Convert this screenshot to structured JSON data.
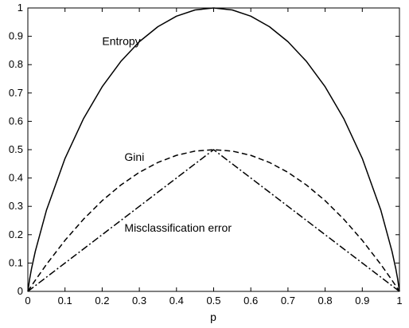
{
  "chart_data": {
    "type": "line",
    "title": "",
    "xlabel": "p",
    "ylabel": "",
    "xlim": [
      0,
      1
    ],
    "ylim": [
      0,
      1
    ],
    "xticks": [
      "0",
      "0.1",
      "0.2",
      "0.3",
      "0.4",
      "0.5",
      "0.6",
      "0.7",
      "0.8",
      "0.9",
      "1"
    ],
    "yticks": [
      "0",
      "0.1",
      "0.2",
      "0.3",
      "0.4",
      "0.5",
      "0.6",
      "0.7",
      "0.8",
      "0.9",
      "1"
    ],
    "grid": false,
    "x": [
      0,
      0.005,
      0.01,
      0.02,
      0.05,
      0.1,
      0.15,
      0.2,
      0.25,
      0.3,
      0.35,
      0.4,
      0.45,
      0.5,
      0.55,
      0.6,
      0.65,
      0.7,
      0.75,
      0.8,
      0.85,
      0.9,
      0.95,
      0.98,
      0.99,
      0.995,
      1
    ],
    "series": [
      {
        "name": "Entropy",
        "line_style": "solid",
        "values": [
          0,
          0.045,
          0.081,
          0.141,
          0.286,
          0.469,
          0.61,
          0.722,
          0.811,
          0.881,
          0.934,
          0.971,
          0.993,
          1,
          0.993,
          0.971,
          0.934,
          0.881,
          0.811,
          0.722,
          0.61,
          0.469,
          0.286,
          0.141,
          0.081,
          0.045,
          0
        ]
      },
      {
        "name": "Gini",
        "line_style": "dashed",
        "values": [
          0,
          0.00995,
          0.0198,
          0.0392,
          0.095,
          0.18,
          0.255,
          0.32,
          0.375,
          0.42,
          0.455,
          0.48,
          0.495,
          0.5,
          0.495,
          0.48,
          0.455,
          0.42,
          0.375,
          0.32,
          0.255,
          0.18,
          0.095,
          0.0392,
          0.0198,
          0.00995,
          0
        ]
      },
      {
        "name": "Misclassification error",
        "line_style": "dashdot",
        "values": [
          0,
          0.005,
          0.01,
          0.02,
          0.05,
          0.1,
          0.15,
          0.2,
          0.25,
          0.3,
          0.35,
          0.4,
          0.45,
          0.5,
          0.45,
          0.4,
          0.35,
          0.3,
          0.25,
          0.2,
          0.15,
          0.1,
          0.05,
          0.02,
          0.01,
          0.005,
          0
        ]
      }
    ],
    "annotations": [
      {
        "text": "Entropy",
        "x": 0.2,
        "y": 0.87
      },
      {
        "text": "Gini",
        "x": 0.26,
        "y": 0.46
      },
      {
        "text": "Misclassification error",
        "x": 0.26,
        "y": 0.21
      }
    ]
  }
}
